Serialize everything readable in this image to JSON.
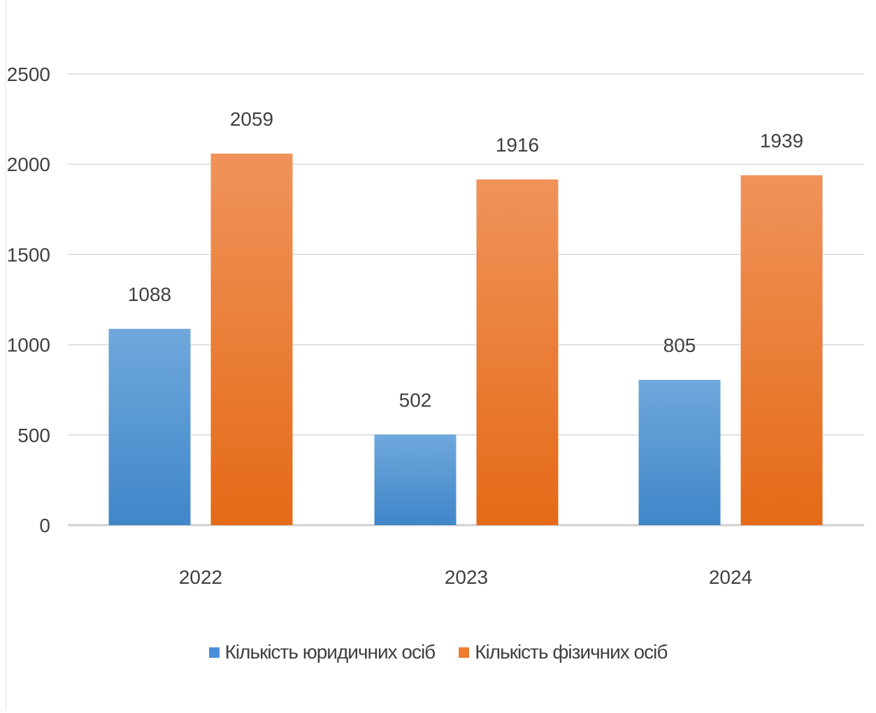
{
  "chart_data": {
    "type": "bar",
    "categories": [
      "2022",
      "2023",
      "2024"
    ],
    "series": [
      {
        "name": "Кількість юридичних осіб",
        "values": [
          1088,
          502,
          805
        ],
        "color": "#4a90d9",
        "color_light": "#6fa8dc",
        "color_dark": "#3f86c9"
      },
      {
        "name": "Кількість фізичних осіб",
        "values": [
          2059,
          1916,
          1939
        ],
        "color": "#ed7d31",
        "color_light": "#f0935a",
        "color_dark": "#e46a17"
      }
    ],
    "ylim": [
      0,
      2500
    ],
    "yticks": [
      "0",
      "500",
      "1000",
      "1500",
      "2000",
      "2500"
    ],
    "grid": true,
    "legend_position": "bottom",
    "title": "",
    "xlabel": "",
    "ylabel": ""
  }
}
